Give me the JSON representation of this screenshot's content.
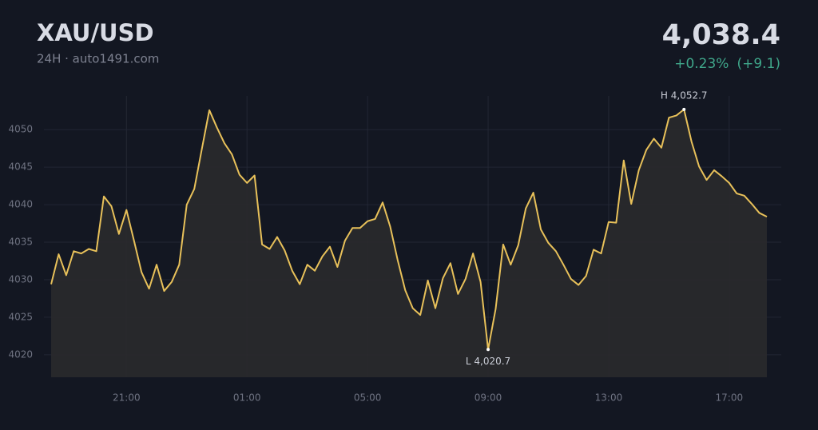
{
  "chart_data": {
    "type": "line",
    "title": "XAU/USD",
    "subtitle": "24H · auto1491.com",
    "price": "4,038.4",
    "change_pct": "+0.23%",
    "change_abs": "(+9.1)",
    "color": "#e8c15a",
    "area": true,
    "grid": true,
    "x": [
      "18:30",
      "18:45",
      "19:00",
      "19:15",
      "19:30",
      "19:45",
      "20:00",
      "20:15",
      "20:30",
      "20:45",
      "21:00",
      "21:15",
      "21:30",
      "21:45",
      "22:00",
      "22:15",
      "22:30",
      "22:45",
      "23:00",
      "23:15",
      "23:30",
      "23:45",
      "00:00",
      "00:15",
      "00:30",
      "00:45",
      "01:00",
      "01:15",
      "01:30",
      "01:45",
      "02:00",
      "02:15",
      "02:30",
      "02:45",
      "03:00",
      "03:15",
      "03:30",
      "03:45",
      "04:00",
      "04:15",
      "04:30",
      "04:45",
      "05:00",
      "05:15",
      "05:30",
      "05:45",
      "06:00",
      "06:15",
      "06:30",
      "06:45",
      "07:00",
      "07:15",
      "07:30",
      "07:45",
      "08:00",
      "08:15",
      "08:30",
      "08:45",
      "09:00",
      "09:15",
      "09:30",
      "09:45",
      "10:00",
      "10:15",
      "10:30",
      "10:45",
      "11:00",
      "11:15",
      "11:30",
      "11:45",
      "12:00",
      "12:15",
      "12:30",
      "12:45",
      "13:00",
      "13:15",
      "13:30",
      "13:45",
      "14:00",
      "14:15",
      "14:30",
      "14:45",
      "15:00",
      "15:15",
      "15:30",
      "15:45",
      "16:00",
      "16:15",
      "16:30",
      "16:45",
      "17:00",
      "17:15",
      "17:30",
      "17:45",
      "18:00",
      "18:15"
    ],
    "values": [
      4029.4,
      4033.4,
      4030.6,
      4033.8,
      4033.5,
      4034.1,
      4033.8,
      4041.1,
      4039.8,
      4036.1,
      4039.3,
      4035.2,
      4031.0,
      4028.8,
      4032.0,
      4028.5,
      4029.7,
      4032.0,
      4040.0,
      4042.1,
      4047.4,
      4052.6,
      4050.3,
      4048.2,
      4046.7,
      4044.0,
      4042.9,
      4043.9,
      4034.7,
      4034.1,
      4035.7,
      4033.9,
      4031.2,
      4029.4,
      4032.0,
      4031.2,
      4033.1,
      4034.4,
      4031.7,
      4035.2,
      4036.9,
      4036.9,
      4037.8,
      4038.1,
      4040.3,
      4037.1,
      4032.6,
      4028.6,
      4026.2,
      4025.3,
      4029.9,
      4026.2,
      4030.2,
      4032.2,
      4028.1,
      4030.1,
      4033.5,
      4029.7,
      4020.7,
      4026.1,
      4034.7,
      4032.0,
      4034.6,
      4039.5,
      4041.6,
      4036.7,
      4034.9,
      4033.8,
      4032.0,
      4030.1,
      4029.3,
      4030.5,
      4034.0,
      4033.5,
      4037.7,
      4037.6,
      4045.9,
      4040.1,
      4044.6,
      4047.3,
      4048.8,
      4047.6,
      4051.6,
      4051.9,
      4052.7,
      4048.4,
      4045.1,
      4043.3,
      4044.6,
      4043.8,
      4042.9,
      4041.5,
      4041.2,
      4040.1,
      4038.9,
      4038.4
    ],
    "xticks": [
      "21:00",
      "01:00",
      "05:00",
      "09:00",
      "13:00",
      "17:00"
    ],
    "ylim": [
      4017,
      4054.5
    ],
    "yticks": [
      4020,
      4025,
      4030,
      4035,
      4040,
      4045,
      4050
    ],
    "annotations": [
      {
        "x": "15:30",
        "value": 4052.7,
        "label": "H 4,052.7",
        "position": "above"
      },
      {
        "x": "09:00",
        "value": 4020.7,
        "label": "L 4,020.7",
        "position": "below"
      }
    ]
  }
}
